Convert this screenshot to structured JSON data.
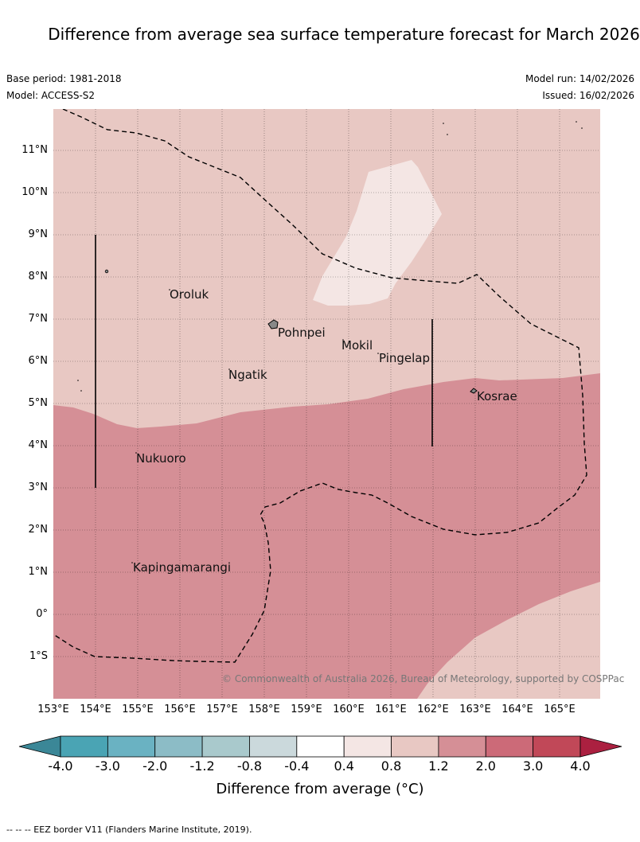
{
  "title": "Difference from average sea surface temperature forecast for March 2026",
  "base_period": "Base period: 1981-2018",
  "model": "Model: ACCESS-S2",
  "model_run": "Model run: 14/02/2026",
  "issued": "Issued: 16/02/2026",
  "copyright": "© Commonwealth of Australia 2026, Bureau of Meteorology, supported by COSPPac",
  "lat_labels": [
    "11°N",
    "10°N",
    "9°N",
    "8°N",
    "7°N",
    "6°N",
    "5°N",
    "4°N",
    "3°N",
    "2°N",
    "1°N",
    "0°",
    "1°S"
  ],
  "lon_labels": [
    "153°E",
    "154°E",
    "155°E",
    "156°E",
    "157°E",
    "158°E",
    "159°E",
    "160°E",
    "161°E",
    "162°E",
    "163°E",
    "164°E",
    "165°E"
  ],
  "places": [
    "Oroluk",
    "Pohnpei",
    "Mokil",
    "Pingelap",
    "Ngatik",
    "Kosrae",
    "Nukuoro",
    "Kapingamarangi"
  ],
  "colorbar": {
    "labels": [
      "-4.0",
      "-3.0",
      "-2.0",
      "-1.2",
      "-0.8",
      "-0.4",
      "0.4",
      "0.8",
      "1.2",
      "2.0",
      "3.0",
      "4.0"
    ],
    "colors": [
      "#4aa4b4",
      "#6ab2c2",
      "#8cbcc6",
      "#a9c9cc",
      "#cbd9dc",
      "#ffffff",
      "#f4e6e4",
      "#e8c8c3",
      "#d58f96",
      "#cc6a78",
      "#c14858"
    ],
    "under_color": "#3b8797",
    "over_color": "#ab2040",
    "title": "Difference from average (°C)"
  },
  "map_colors": {
    "band_04_08": "#f4e6e4",
    "band_08_12": "#e8c8c3",
    "band_12_20": "#d58f96"
  },
  "footnote": "--  --  -- EEZ border V11 (Flanders Marine Institute, 2019)."
}
